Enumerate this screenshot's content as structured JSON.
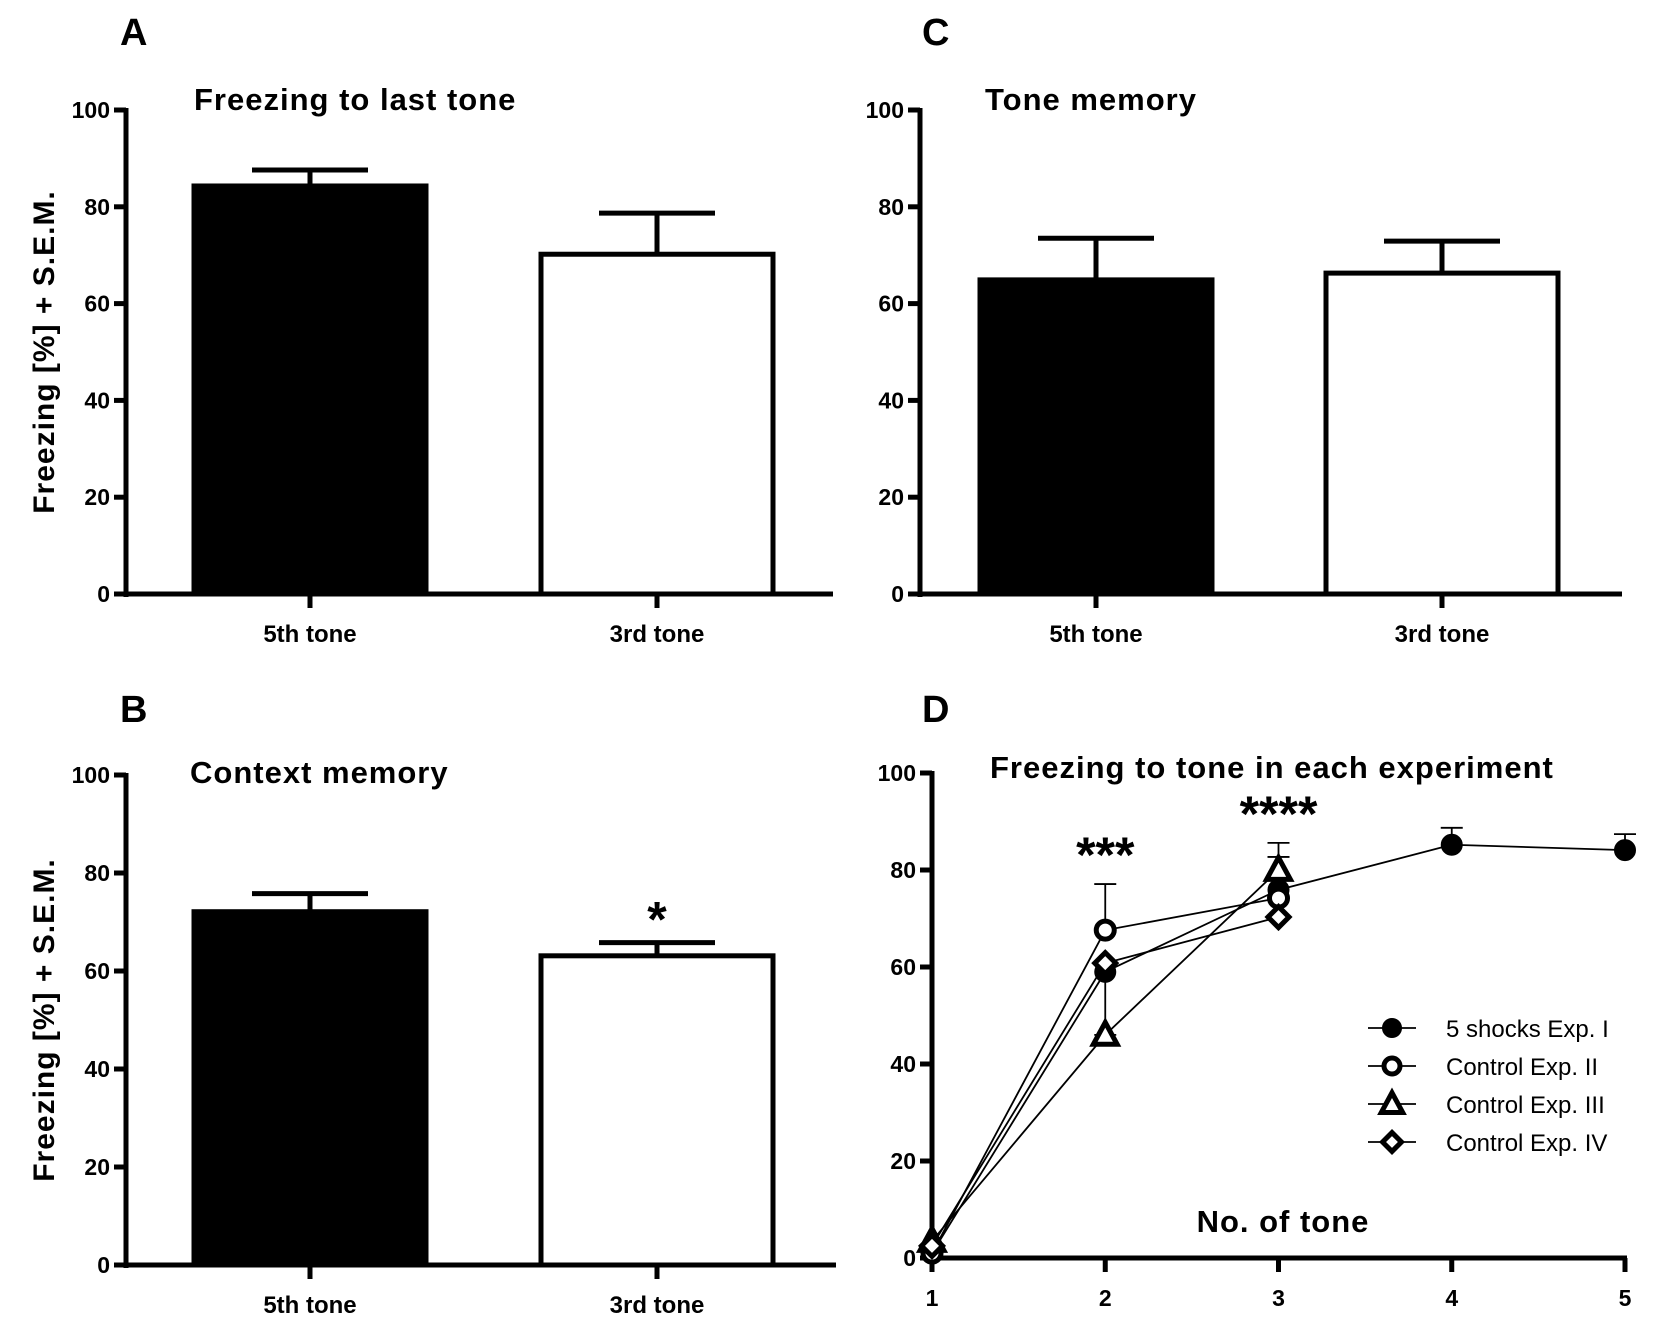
{
  "figure": {
    "panel_letters": [
      "A",
      "B",
      "C",
      "D"
    ],
    "y_axis_title": "Freezing [%] + S.E.M."
  },
  "chart_data": [
    {
      "panel": "A",
      "type": "bar",
      "title": "Freezing to last tone",
      "xlabel": "",
      "ylabel": "Freezing [%] + S.E.M.",
      "ylim": [
        0,
        100
      ],
      "yticks": [
        0,
        20,
        40,
        60,
        80,
        100
      ],
      "categories": [
        "5th tone",
        "3rd tone"
      ],
      "values": [
        84.3,
        70.2
      ],
      "errors": [
        3.3,
        8.5
      ],
      "fills": [
        "#000000",
        "#ffffff"
      ],
      "significance": [
        "",
        ""
      ]
    },
    {
      "panel": "B",
      "type": "bar",
      "title": "Context memory",
      "xlabel": "",
      "ylabel": "Freezing [%] + S.E.M.",
      "ylim": [
        0,
        100
      ],
      "yticks": [
        0,
        20,
        40,
        60,
        80,
        100
      ],
      "categories": [
        "5th tone",
        "3rd tone"
      ],
      "values": [
        72.1,
        63.1
      ],
      "errors": [
        3.7,
        2.7
      ],
      "fills": [
        "#000000",
        "#ffffff"
      ],
      "significance": [
        "",
        "*"
      ]
    },
    {
      "panel": "C",
      "type": "bar",
      "title": "Tone memory",
      "xlabel": "",
      "ylabel": "",
      "ylim": [
        0,
        100
      ],
      "yticks": [
        0,
        20,
        40,
        60,
        80,
        100
      ],
      "categories": [
        "5th tone",
        "3rd tone"
      ],
      "values": [
        64.9,
        66.3
      ],
      "errors": [
        8.6,
        6.6
      ],
      "fills": [
        "#000000",
        "#ffffff"
      ],
      "significance": [
        "",
        ""
      ]
    },
    {
      "panel": "D",
      "type": "line",
      "title": "Freezing to tone in each experiment",
      "xlabel": "No. of tone",
      "ylabel": "",
      "ylim": [
        0,
        100
      ],
      "xlim": [
        1,
        5
      ],
      "yticks": [
        0,
        20,
        40,
        60,
        80,
        100
      ],
      "xticks": [
        1,
        2,
        3,
        4,
        5
      ],
      "legend_position": "right",
      "series": [
        {
          "name": "5 shocks  Exp. I",
          "marker": "filled-circle",
          "x": [
            1,
            2,
            3,
            4,
            5
          ],
          "values": [
            1.0,
            59.0,
            75.9,
            85.2,
            84.1
          ],
          "errors": [
            0,
            13.0,
            6.8,
            3.5,
            3.3
          ],
          "error_direction": [
            "up",
            "down",
            "up",
            "up",
            "up"
          ]
        },
        {
          "name": "Control Exp. II",
          "marker": "open-circle",
          "x": [
            1,
            2,
            3
          ],
          "values": [
            1.0,
            67.6,
            74.2
          ],
          "errors": [
            0,
            9.5,
            11.4
          ],
          "error_direction": [
            "up",
            "up",
            "up"
          ]
        },
        {
          "name": "Control Exp. III",
          "marker": "open-triangle",
          "x": [
            1,
            2,
            3
          ],
          "values": [
            3.5,
            46.0,
            80.0
          ],
          "errors": [
            0,
            0,
            2.7
          ],
          "error_direction": [
            "up",
            "up",
            "up"
          ]
        },
        {
          "name": "Control Exp. IV",
          "marker": "open-diamond",
          "x": [
            1,
            2,
            3
          ],
          "values": [
            2.5,
            60.8,
            70.3
          ],
          "errors": [
            0,
            0,
            0
          ],
          "error_direction": [
            "up",
            "up",
            "up"
          ]
        }
      ],
      "annotations": [
        {
          "x": 2,
          "text": "***"
        },
        {
          "x": 3,
          "text": "****"
        }
      ]
    }
  ]
}
